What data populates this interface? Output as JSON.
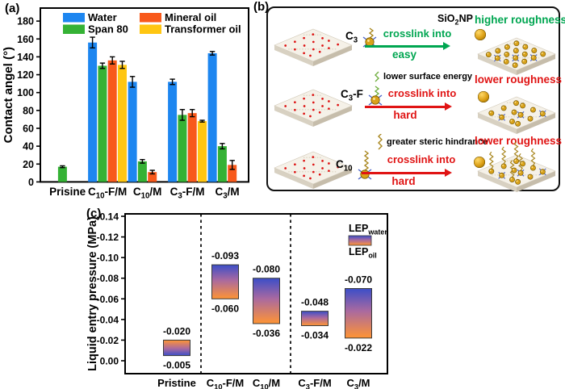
{
  "panels": {
    "a_tag": "(a)",
    "b_tag": "(b)",
    "c_tag": "(c)"
  },
  "colors": {
    "water": "#1D86F0",
    "span80": "#35B235",
    "mineral_oil": "#F8591B",
    "transformer_oil": "#FFC612",
    "green_arrow": "#00A651",
    "red_arrow": "#E01414",
    "lep_water_text": "#1E5CD6",
    "lep_oil_text": "#FF7214",
    "grad_top": "#3B4EC8",
    "grad_mid": "#A969A0",
    "grad_bottom": "#FF9434",
    "bar_outline": "#3a3a3a"
  },
  "chart_data": [
    {
      "id": "contact_angle",
      "panel": "a",
      "type": "bar",
      "title": "",
      "xlabel": "",
      "ylabel": "Contact angel (°)",
      "ylim": [
        0,
        190
      ],
      "yticks": [
        0,
        20,
        40,
        60,
        80,
        100,
        120,
        140,
        160,
        180
      ],
      "grid": false,
      "legend_position": "top-inside",
      "categories": [
        "Prisine",
        "C_{10}-F/M",
        "C_{10}/M",
        "C_{3}-F/M",
        "C_{3}/M"
      ],
      "series": [
        {
          "name": "Water",
          "color_key": "water",
          "values": [
            null,
            156,
            112,
            112,
            144
          ],
          "errors": [
            null,
            6,
            6,
            3,
            2
          ]
        },
        {
          "name": "Span 80",
          "color_key": "span80",
          "values": [
            17,
            130,
            23,
            75,
            40
          ],
          "errors": [
            1,
            3,
            2,
            6,
            3
          ]
        },
        {
          "name": "Mineral oil",
          "color_key": "mineral_oil",
          "values": [
            null,
            136,
            11,
            77,
            19
          ],
          "errors": [
            null,
            4,
            2,
            4,
            5
          ]
        },
        {
          "name": "Transformer oil",
          "color_key": "transformer_oil",
          "values": [
            null,
            131,
            null,
            68,
            null
          ],
          "errors": [
            null,
            4,
            null,
            1,
            null
          ]
        }
      ],
      "legend_grid": [
        [
          "Water",
          "Span 80"
        ],
        [
          "Mineral oil",
          "Transformer oil"
        ]
      ]
    },
    {
      "id": "lep",
      "panel": "c",
      "type": "floating-bar",
      "title": "",
      "xlabel": "",
      "ylabel": "Liquid entry pressure (MPa)",
      "ylim": [
        -0.14,
        0.0
      ],
      "yticks": [
        -0.14,
        -0.12,
        -0.1,
        -0.08,
        -0.06,
        -0.04,
        -0.02,
        0.0
      ],
      "grid": false,
      "categories": [
        "Pristine",
        "C_{10}-F/M",
        "C_{10}/M",
        "C_{3}-F/M",
        "C_{3}/M"
      ],
      "bars": [
        {
          "lep_water": -0.005,
          "lep_oil": -0.02
        },
        {
          "lep_water": -0.093,
          "lep_oil": -0.06
        },
        {
          "lep_water": -0.08,
          "lep_oil": -0.036
        },
        {
          "lep_water": -0.048,
          "lep_oil": -0.034
        },
        {
          "lep_water": -0.07,
          "lep_oil": -0.022
        }
      ],
      "separators_after": [
        0,
        2
      ],
      "legend": {
        "water_label": "LEP_{water}",
        "oil_label": "LEP_{oil}"
      }
    }
  ],
  "panel_b": {
    "rows": [
      {
        "np_label": "C_{3}",
        "note": "",
        "sphere_label": "SiO_{2}NP",
        "arrow_top": "crosslink into",
        "arrow_bottom": "easy",
        "arrow_color_key": "green_arrow",
        "result": "higher roughness",
        "result_color_key": "green_arrow",
        "left_surface": "pristine",
        "right_surface": "np-dense",
        "tail": "short"
      },
      {
        "np_label": "C_{3}-F",
        "note": "lower surface energy",
        "sphere_label": "",
        "arrow_top": "crosslink into",
        "arrow_bottom": "hard",
        "arrow_color_key": "red_arrow",
        "result": "lower roughness",
        "result_color_key": "red_arrow",
        "left_surface": "pristine",
        "right_surface": "np-medium",
        "tail": "short-green"
      },
      {
        "np_label": "C_{10}",
        "note": "greater steric hindrance",
        "sphere_label": "",
        "arrow_top": "crosslink into",
        "arrow_bottom": "hard",
        "arrow_color_key": "red_arrow",
        "result": "lower roughness",
        "result_color_key": "red_arrow",
        "left_surface": "pristine",
        "right_surface": "np-chains",
        "tail": "long"
      }
    ]
  }
}
